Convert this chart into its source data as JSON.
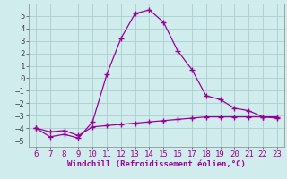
{
  "x": [
    6,
    7,
    8,
    9,
    10,
    11,
    12,
    13,
    14,
    15,
    16,
    17,
    18,
    19,
    20,
    21,
    22,
    23
  ],
  "y_windchill": [
    -4.0,
    -4.7,
    -4.5,
    -4.8,
    -3.5,
    0.3,
    3.2,
    5.2,
    5.5,
    4.5,
    2.2,
    0.7,
    -1.4,
    -1.7,
    -2.4,
    -2.6,
    -3.1,
    -3.2
  ],
  "y_temp": [
    -4.0,
    -4.3,
    -4.2,
    -4.6,
    -3.9,
    -3.8,
    -3.7,
    -3.6,
    -3.5,
    -3.4,
    -3.3,
    -3.2,
    -3.1,
    -3.1,
    -3.1,
    -3.1,
    -3.1,
    -3.1
  ],
  "line_color": "#990099",
  "bg_color": "#d0ecec",
  "grid_color": "#aacece",
  "xlabel": "Windchill (Refroidissement éolien,°C)",
  "xlim": [
    5.5,
    23.5
  ],
  "ylim": [
    -5.5,
    6.0
  ],
  "xticks": [
    6,
    7,
    8,
    9,
    10,
    11,
    12,
    13,
    14,
    15,
    16,
    17,
    18,
    19,
    20,
    21,
    22,
    23
  ],
  "yticks": [
    -5,
    -4,
    -3,
    -2,
    -1,
    0,
    1,
    2,
    3,
    4,
    5
  ],
  "xlabel_color": "#990099",
  "xlabel_fontsize": 6.5,
  "tick_fontsize": 6.5,
  "marker": "+",
  "markersize": 4,
  "linewidth": 0.9
}
